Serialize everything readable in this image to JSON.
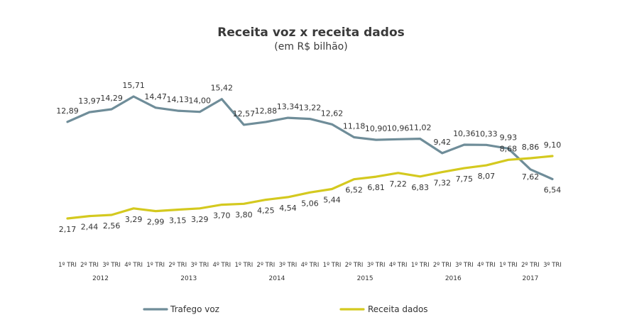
{
  "chart_data": {
    "type": "line",
    "title": "Receita voz x receita dados",
    "subtitle": "(em R$ bilhão)",
    "categories": [
      "1º TRI",
      "2º TRI",
      "3º TRI",
      "4º TRI",
      "1º TRI",
      "2º TRI",
      "3º TRI",
      "4º TRI",
      "1º TRI",
      "2º TRI",
      "3º TRI",
      "4º TRI",
      "1º TRI",
      "2º TRI",
      "3º TRI",
      "4º TRI",
      "1º TRI",
      "2º TRI",
      "3º TRI",
      "4º TRI",
      "1º TRI",
      "2º TRI",
      "3º TRI"
    ],
    "years": [
      {
        "label": "2012",
        "start": 0,
        "end": 3
      },
      {
        "label": "2013",
        "start": 4,
        "end": 7
      },
      {
        "label": "2014",
        "start": 8,
        "end": 11
      },
      {
        "label": "2015",
        "start": 12,
        "end": 15
      },
      {
        "label": "2016",
        "start": 16,
        "end": 19
      },
      {
        "label": "2017",
        "start": 20,
        "end": 22
      }
    ],
    "series": [
      {
        "name": "Trafego voz",
        "color": "#6f8d99",
        "values": [
          12.89,
          13.97,
          14.29,
          15.71,
          14.47,
          14.13,
          14.0,
          15.42,
          12.57,
          12.88,
          13.34,
          13.22,
          12.62,
          11.18,
          10.9,
          10.96,
          11.02,
          9.42,
          10.36,
          10.33,
          9.93,
          7.62,
          6.54
        ],
        "labels": [
          "12,89",
          "13,97",
          "14,29",
          "15,71",
          "14,47",
          "14,13",
          "14,00",
          "15,42",
          "12,57",
          "12,88",
          "13,34",
          "13,22",
          "12,62",
          "11,18",
          "10,90",
          "10,96",
          "11,02",
          "9,42",
          "10,36",
          "10,33",
          "9,93",
          "7,62",
          "6,54"
        ]
      },
      {
        "name": "Receita dados",
        "color": "#d4c91f",
        "values": [
          2.17,
          2.44,
          2.56,
          3.29,
          2.99,
          3.15,
          3.29,
          3.7,
          3.8,
          4.25,
          4.54,
          5.06,
          5.44,
          6.52,
          6.81,
          7.22,
          6.83,
          7.32,
          7.75,
          8.07,
          8.68,
          8.86,
          9.1
        ],
        "labels": [
          "2,17",
          "2,44",
          "2,56",
          "3,29",
          "2,99",
          "3,15",
          "3,29",
          "3,70",
          "3,80",
          "4,25",
          "4,54",
          "5,06",
          "5,44",
          "6,52",
          "6,81",
          "7,22",
          "6,83",
          "7,32",
          "7,75",
          "8,07",
          "8,68",
          "8,86",
          "9,10"
        ]
      }
    ],
    "legend_position": "bottom",
    "grid": false
  }
}
